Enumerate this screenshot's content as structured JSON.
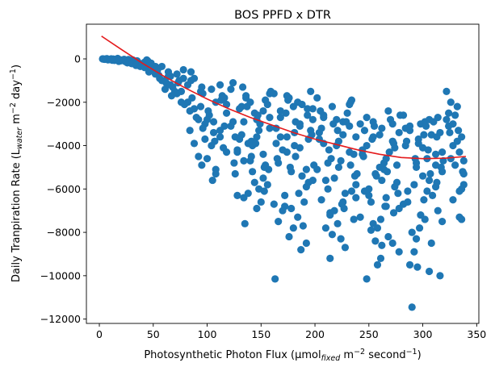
{
  "chart_data": {
    "type": "scatter",
    "title": "BOS PPFD x DTR",
    "xlabel": "Photosynthetic Photon Flux (µmol_fixed m^-2 second^-1)",
    "xlabel_parts": {
      "main": "Photosynthetic Photon Flux (µmol",
      "sub": "fixed",
      "mid": " m",
      "sup1": "−2",
      "mid2": " second",
      "sup2": "−1",
      "end": ")"
    },
    "ylabel": "Daily Tranpiration Rate (L_water m^-2 day^-1)",
    "ylabel_parts": {
      "main": "Daily Tranpiration Rate (L",
      "sub": "water",
      "mid": " m",
      "sup1": "−2",
      "mid2": " day",
      "sup2": "−1",
      "end": ")"
    },
    "xlim": [
      -12,
      352
    ],
    "ylim": [
      -12200,
      1600
    ],
    "xticks": [
      0,
      50,
      100,
      150,
      200,
      250,
      300,
      350
    ],
    "xtick_labels": [
      "0",
      "50",
      "100",
      "150",
      "200",
      "250",
      "300",
      "350"
    ],
    "yticks": [
      -12000,
      -10000,
      -8000,
      -6000,
      -4000,
      -2000,
      0
    ],
    "ytick_labels": [
      "−12000",
      "−10000",
      "−8000",
      "−6000",
      "−4000",
      "−2000",
      "0"
    ],
    "grid": false,
    "colors": {
      "points": "#1f77b4",
      "fit": "#e41a1c"
    },
    "fit_curve": {
      "type": "quadratic",
      "x": [
        2,
        20,
        40,
        60,
        80,
        100,
        120,
        140,
        160,
        180,
        200,
        220,
        240,
        260,
        280,
        300,
        320,
        340
      ],
      "y": [
        1050,
        450,
        -200,
        -800,
        -1350,
        -1850,
        -2300,
        -2700,
        -3050,
        -3400,
        -3700,
        -3950,
        -4200,
        -4400,
        -4550,
        -4600,
        -4580,
        -4500
      ]
    },
    "points": {
      "x": [
        3,
        5,
        7,
        9,
        11,
        13,
        15,
        17,
        19,
        21,
        23,
        25,
        27,
        29,
        31,
        33,
        35,
        37,
        4,
        8,
        12,
        16,
        20,
        24,
        28,
        32,
        36,
        6,
        10,
        14,
        18,
        22,
        26,
        30,
        34,
        38,
        42,
        44,
        46,
        48,
        52,
        54,
        56,
        58,
        62,
        64,
        66,
        68,
        72,
        74,
        76,
        78,
        42,
        48,
        54,
        60,
        66,
        72,
        78,
        45,
        50,
        55,
        61,
        67,
        73,
        79,
        44,
        52,
        58,
        64,
        70,
        76,
        82,
        84,
        86,
        88,
        92,
        94,
        96,
        98,
        102,
        104,
        106,
        108,
        112,
        114,
        116,
        118,
        82,
        88,
        94,
        100,
        106,
        112,
        118,
        85,
        90,
        95,
        101,
        107,
        113,
        85,
        95,
        105,
        115,
        88,
        98,
        108,
        118,
        84,
        92,
        100,
        108,
        116,
        96,
        104,
        112,
        122,
        124,
        126,
        128,
        132,
        134,
        136,
        138,
        142,
        144,
        146,
        148,
        152,
        154,
        156,
        158,
        122,
        128,
        134,
        140,
        146,
        152,
        158,
        125,
        130,
        135,
        141,
        147,
        153,
        159,
        124,
        132,
        140,
        148,
        156,
        126,
        134,
        142,
        150,
        158,
        128,
        136,
        144,
        152,
        130,
        138,
        146,
        154,
        133,
        141,
        149,
        157,
        137,
        145,
        153,
        162,
        164,
        166,
        168,
        172,
        174,
        176,
        178,
        182,
        184,
        186,
        188,
        192,
        194,
        196,
        198,
        162,
        168,
        174,
        180,
        186,
        192,
        198,
        165,
        170,
        175,
        181,
        187,
        193,
        199,
        164,
        172,
        180,
        188,
        196,
        166,
        174,
        182,
        190,
        198,
        168,
        176,
        184,
        192,
        170,
        178,
        186,
        194,
        173,
        181,
        189,
        197,
        177,
        185,
        193,
        163,
        202,
        204,
        206,
        208,
        212,
        214,
        216,
        218,
        222,
        224,
        226,
        228,
        232,
        234,
        236,
        238,
        202,
        208,
        214,
        220,
        226,
        232,
        238,
        205,
        210,
        215,
        221,
        227,
        233,
        239,
        204,
        212,
        220,
        228,
        236,
        206,
        214,
        222,
        230,
        238,
        208,
        216,
        224,
        232,
        210,
        218,
        226,
        234,
        213,
        221,
        229,
        237,
        217,
        225,
        233,
        242,
        244,
        246,
        248,
        252,
        254,
        256,
        258,
        262,
        264,
        266,
        268,
        272,
        274,
        276,
        278,
        242,
        248,
        254,
        260,
        266,
        272,
        278,
        245,
        250,
        255,
        261,
        267,
        273,
        279,
        244,
        252,
        260,
        268,
        276,
        246,
        254,
        262,
        270,
        278,
        248,
        256,
        264,
        272,
        250,
        258,
        266,
        274,
        253,
        261,
        269,
        277,
        257,
        265,
        273,
        262,
        282,
        284,
        286,
        288,
        292,
        294,
        296,
        298,
        302,
        304,
        306,
        308,
        312,
        314,
        316,
        318,
        282,
        288,
        294,
        300,
        306,
        312,
        318,
        285,
        290,
        295,
        301,
        307,
        313,
        319,
        284,
        292,
        300,
        308,
        316,
        286,
        294,
        302,
        310,
        318,
        288,
        296,
        304,
        312,
        290,
        298,
        306,
        314,
        293,
        301,
        309,
        317,
        297,
        305,
        313,
        303,
        322,
        324,
        326,
        328,
        332,
        334,
        336,
        338,
        322,
        328,
        334,
        325,
        330,
        336,
        324,
        332,
        338,
        326,
        334,
        328,
        336,
        330,
        338,
        333,
        337
      ],
      "y": [
        0,
        -20,
        10,
        -30,
        0,
        -10,
        -50,
        20,
        -40,
        -60,
        -20,
        -80,
        -30,
        -100,
        -50,
        -150,
        -90,
        -200,
        -10,
        -40,
        -60,
        -20,
        -90,
        -120,
        -60,
        -150,
        -250,
        -5,
        -30,
        -70,
        -110,
        -50,
        -180,
        -220,
        -300,
        -350,
        -400,
        -300,
        -600,
        -200,
        -700,
        -500,
        -900,
        -350,
        -1100,
        -600,
        -800,
        -1300,
        -700,
        -1000,
        -1500,
        -500,
        -150,
        -250,
        -450,
        -1000,
        -1200,
        -1600,
        -900,
        -100,
        -550,
        -750,
        -1400,
        -1700,
        -1100,
        -2100,
        -50,
        -350,
        -1000,
        -800,
        -1500,
        -2000,
        -1200,
        -2400,
        -1800,
        -900,
        -2800,
        -2200,
        -1600,
        -3000,
        -2600,
        -1400,
        -3400,
        -2000,
        -3600,
        -1700,
        -3100,
        -2500,
        -2000,
        -3900,
        -1500,
        -4600,
        -2900,
        -3300,
        -4300,
        -1000,
        -2700,
        -4900,
        -2400,
        -3800,
        -1900,
        -600,
        -1300,
        -5600,
        -4100,
        -2300,
        -3700,
        -5100,
        -2100,
        -3300,
        -4500,
        -2800,
        -5300,
        -1800,
        -3200,
        -4000,
        -1200,
        -1400,
        -2900,
        -3600,
        -6300,
        -2200,
        -4700,
        -1700,
        -3900,
        -5200,
        -2500,
        -6900,
        -3300,
        -4400,
        -1900,
        -5800,
        -2700,
        -3100,
        -4200,
        -6400,
        -2000,
        -3600,
        -5500,
        -1600,
        -4800,
        -2300,
        -7600,
        -3800,
        -2600,
        -5000,
        -1500,
        -1100,
        -3500,
        -4700,
        -6000,
        -2100,
        -5300,
        -2900,
        -4000,
        -6600,
        -3200,
        -4300,
        -1800,
        -5700,
        -2400,
        -3700,
        -6200,
        -2800,
        -4900,
        -1300,
        -4500,
        -3000,
        -5100,
        -2200,
        -3900,
        -6100,
        -1600,
        -3200,
        -4800,
        -2400,
        -6800,
        -3600,
        -1800,
        -5200,
        -2900,
        -7300,
        -4100,
        -2100,
        -8500,
        -3700,
        -1500,
        -5600,
        -6700,
        -2700,
        -4300,
        -7800,
        -3100,
        -5900,
        -2300,
        -4600,
        -7000,
        -1900,
        -3400,
        -8800,
        -2600,
        -4900,
        -3900,
        -6300,
        -2200,
        -5400,
        -3300,
        -7500,
        -1700,
        -4500,
        -6600,
        -2800,
        -3600,
        -8200,
        -2000,
        -5100,
        -4200,
        -6900,
        -3000,
        -5700,
        -2500,
        -4000,
        -7700,
        -3500,
        -5000,
        -6200,
        -2300,
        -10150,
        -1800,
        -3400,
        -6500,
        -2600,
        -4800,
        -7100,
        -2200,
        -5500,
        -3800,
        -8300,
        -2900,
        -6200,
        -4300,
        -1900,
        -7400,
        -3600,
        -5100,
        -2700,
        -9200,
        -4000,
        -6600,
        -3100,
        -5800,
        -2400,
        -7800,
        -4600,
        -3300,
        -6900,
        -2000,
        -5300,
        -3700,
        -6000,
        -2800,
        -8700,
        -4400,
        -3200,
        -7200,
        -5000,
        -2500,
        -6400,
        -3900,
        -8100,
        -4700,
        -2100,
        -5600,
        -7000,
        -3500,
        -6100,
        -4200,
        -7600,
        -2900,
        -5400,
        -3000,
        -6700,
        -4900,
        -3000,
        -4400,
        -6100,
        -2700,
        -7900,
        -3600,
        -5300,
        -9500,
        -3200,
        -4800,
        -6800,
        -2400,
        -8500,
        -4100,
        -5700,
        -3400,
        -7300,
        -10150,
        -2900,
        -5000,
        -6400,
        -3800,
        -8900,
        -4500,
        -6000,
        -3100,
        -9200,
        -5200,
        -7100,
        -2600,
        -4200,
        -6600,
        -3500,
        -8200,
        -4900,
        -3300,
        -7600,
        -5600,
        -2800,
        -6900,
        -4000,
        -8400,
        -5100,
        -3000,
        -6300,
        -7800,
        -4600,
        -5900,
        -3700,
        -7400,
        -4300,
        -6200,
        -5400,
        -6800,
        -3900,
        -8600,
        -2600,
        -4000,
        -6100,
        -3300,
        -8900,
        -5000,
        -3700,
        -7200,
        -2900,
        -4600,
        -9800,
        -3500,
        -5900,
        -2700,
        -10000,
        -4300,
        -6700,
        -3100,
        -8300,
        -5400,
        -2800,
        -4900,
        -7500,
        -3800,
        -11450,
        -9600,
        -6500,
        -5300,
        -3600,
        -4700,
        -3200,
        -5800,
        -4100,
        -8500,
        -3400,
        -6600,
        -4800,
        -7400,
        -2900,
        -5200,
        -9500,
        -3900,
        -6100,
        -4400,
        -8000,
        -3000,
        -5600,
        -7000,
        -4600,
        -3500,
        -6300,
        -5000,
        -7800,
        -4200,
        -5700,
        -3100,
        -1500,
        -3100,
        -4600,
        -6500,
        -2200,
        -7300,
        -3600,
        -5800,
        -2800,
        -4000,
        -6100,
        -3400,
        -4900,
        -7400,
        -2500,
        -3800,
        -5300,
        -2000,
        -4300,
        -3000,
        -6000,
        -2600,
        -4700,
        -3300,
        -5200
      ]
    }
  }
}
